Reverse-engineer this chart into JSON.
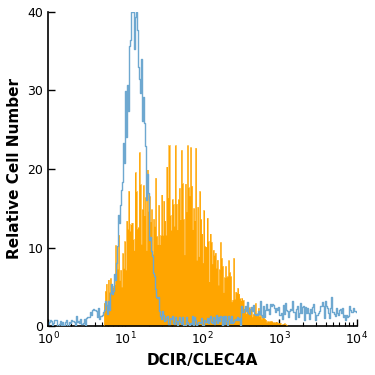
{
  "title": "",
  "xlabel": "DCIR/CLEC4A",
  "ylabel": "Relative Cell Number",
  "xlim_log": [
    0,
    4
  ],
  "ylim": [
    0,
    40
  ],
  "yticks": [
    0,
    10,
    20,
    30,
    40
  ],
  "blue_color": "#6ea8d0",
  "orange_color": "#FFA500",
  "background_color": "#ffffff",
  "figsize": [
    3.75,
    3.75
  ],
  "dpi": 100,
  "seed": 12,
  "blue_peak_log": 1.12,
  "blue_peak_height": 36,
  "blue_sigma": 0.13,
  "orange_peak_log": 1.58,
  "orange_peak_height": 15,
  "orange_sigma": 0.52,
  "n_bins": 300
}
